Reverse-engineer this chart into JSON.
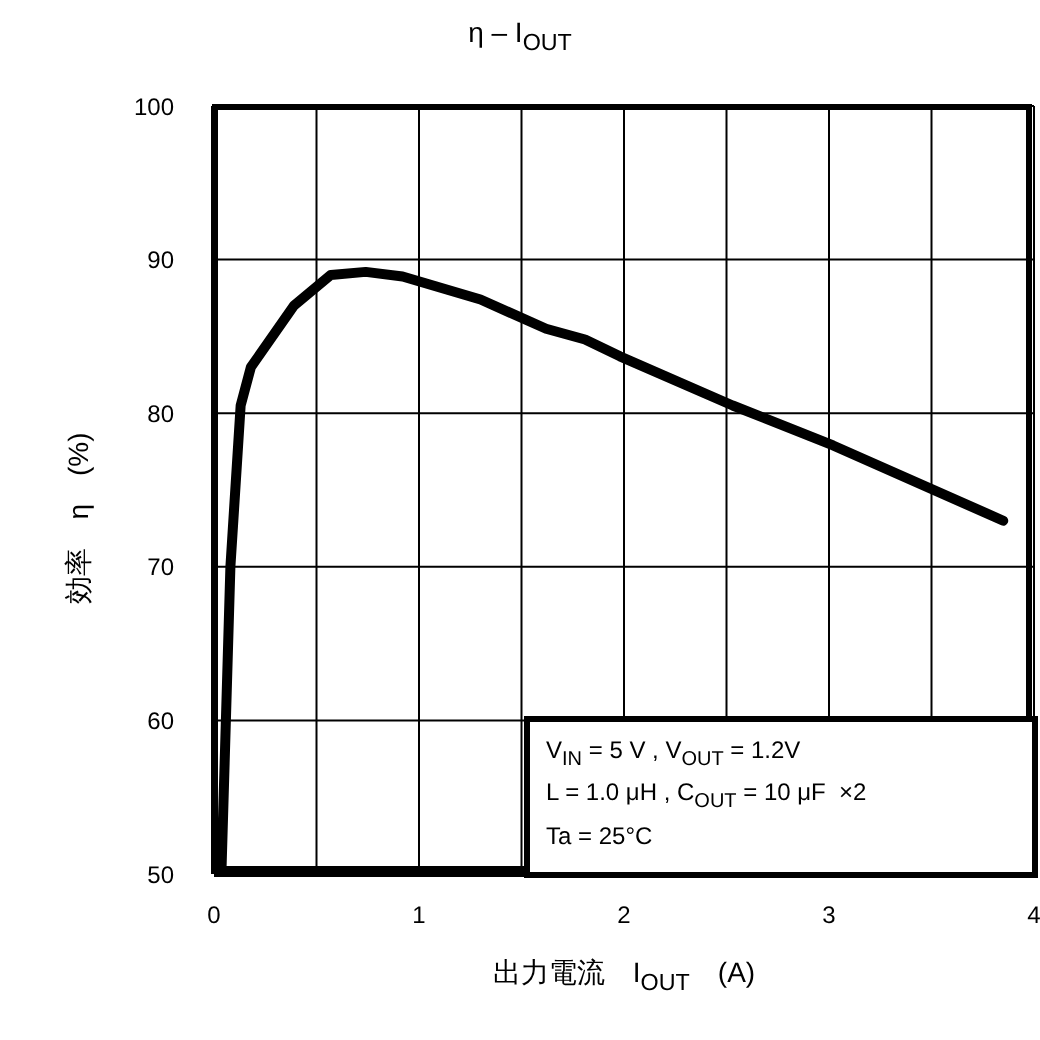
{
  "chart_data": {
    "type": "line",
    "title": "η – I$_{OUT}$",
    "xlabel": "出力電流　I$_{OUT}$　(A)",
    "ylabel": "効率　η　(%)",
    "annotations": [
      "V$_{IN}$ = 5 V , V$_{OUT}$ = 1.2V",
      "L = 1.0 μH , C$_{OUT}$ = 10 μF  ×2",
      "Ta = 25°C"
    ],
    "series": [
      {
        "color": "#000000",
        "x": [
          0.036,
          0.08,
          0.13,
          0.18,
          0.39,
          0.57,
          0.74,
          0.92,
          1.3,
          1.62,
          1.81,
          1.98,
          2.53,
          3.02,
          3.85
        ],
        "values": [
          50,
          70,
          80.5,
          83,
          87,
          89,
          89.2,
          88.9,
          87.4,
          85.5,
          84.8,
          83.7,
          80.5,
          77.9,
          73
        ]
      }
    ],
    "xlim": [
      0,
      4
    ],
    "xticks": [
      0,
      {
        "value": 0.5,
        "label": null
      },
      1,
      {
        "value": 1.5,
        "label": null
      },
      2,
      {
        "value": 2.5,
        "label": null
      },
      3,
      {
        "value": 3.5,
        "label": null
      },
      4
    ],
    "ylim": [
      50,
      100
    ],
    "yticks": [
      50,
      60,
      70,
      80,
      90,
      100
    ],
    "grid": true,
    "marker": "none",
    "line_style": "solid"
  }
}
